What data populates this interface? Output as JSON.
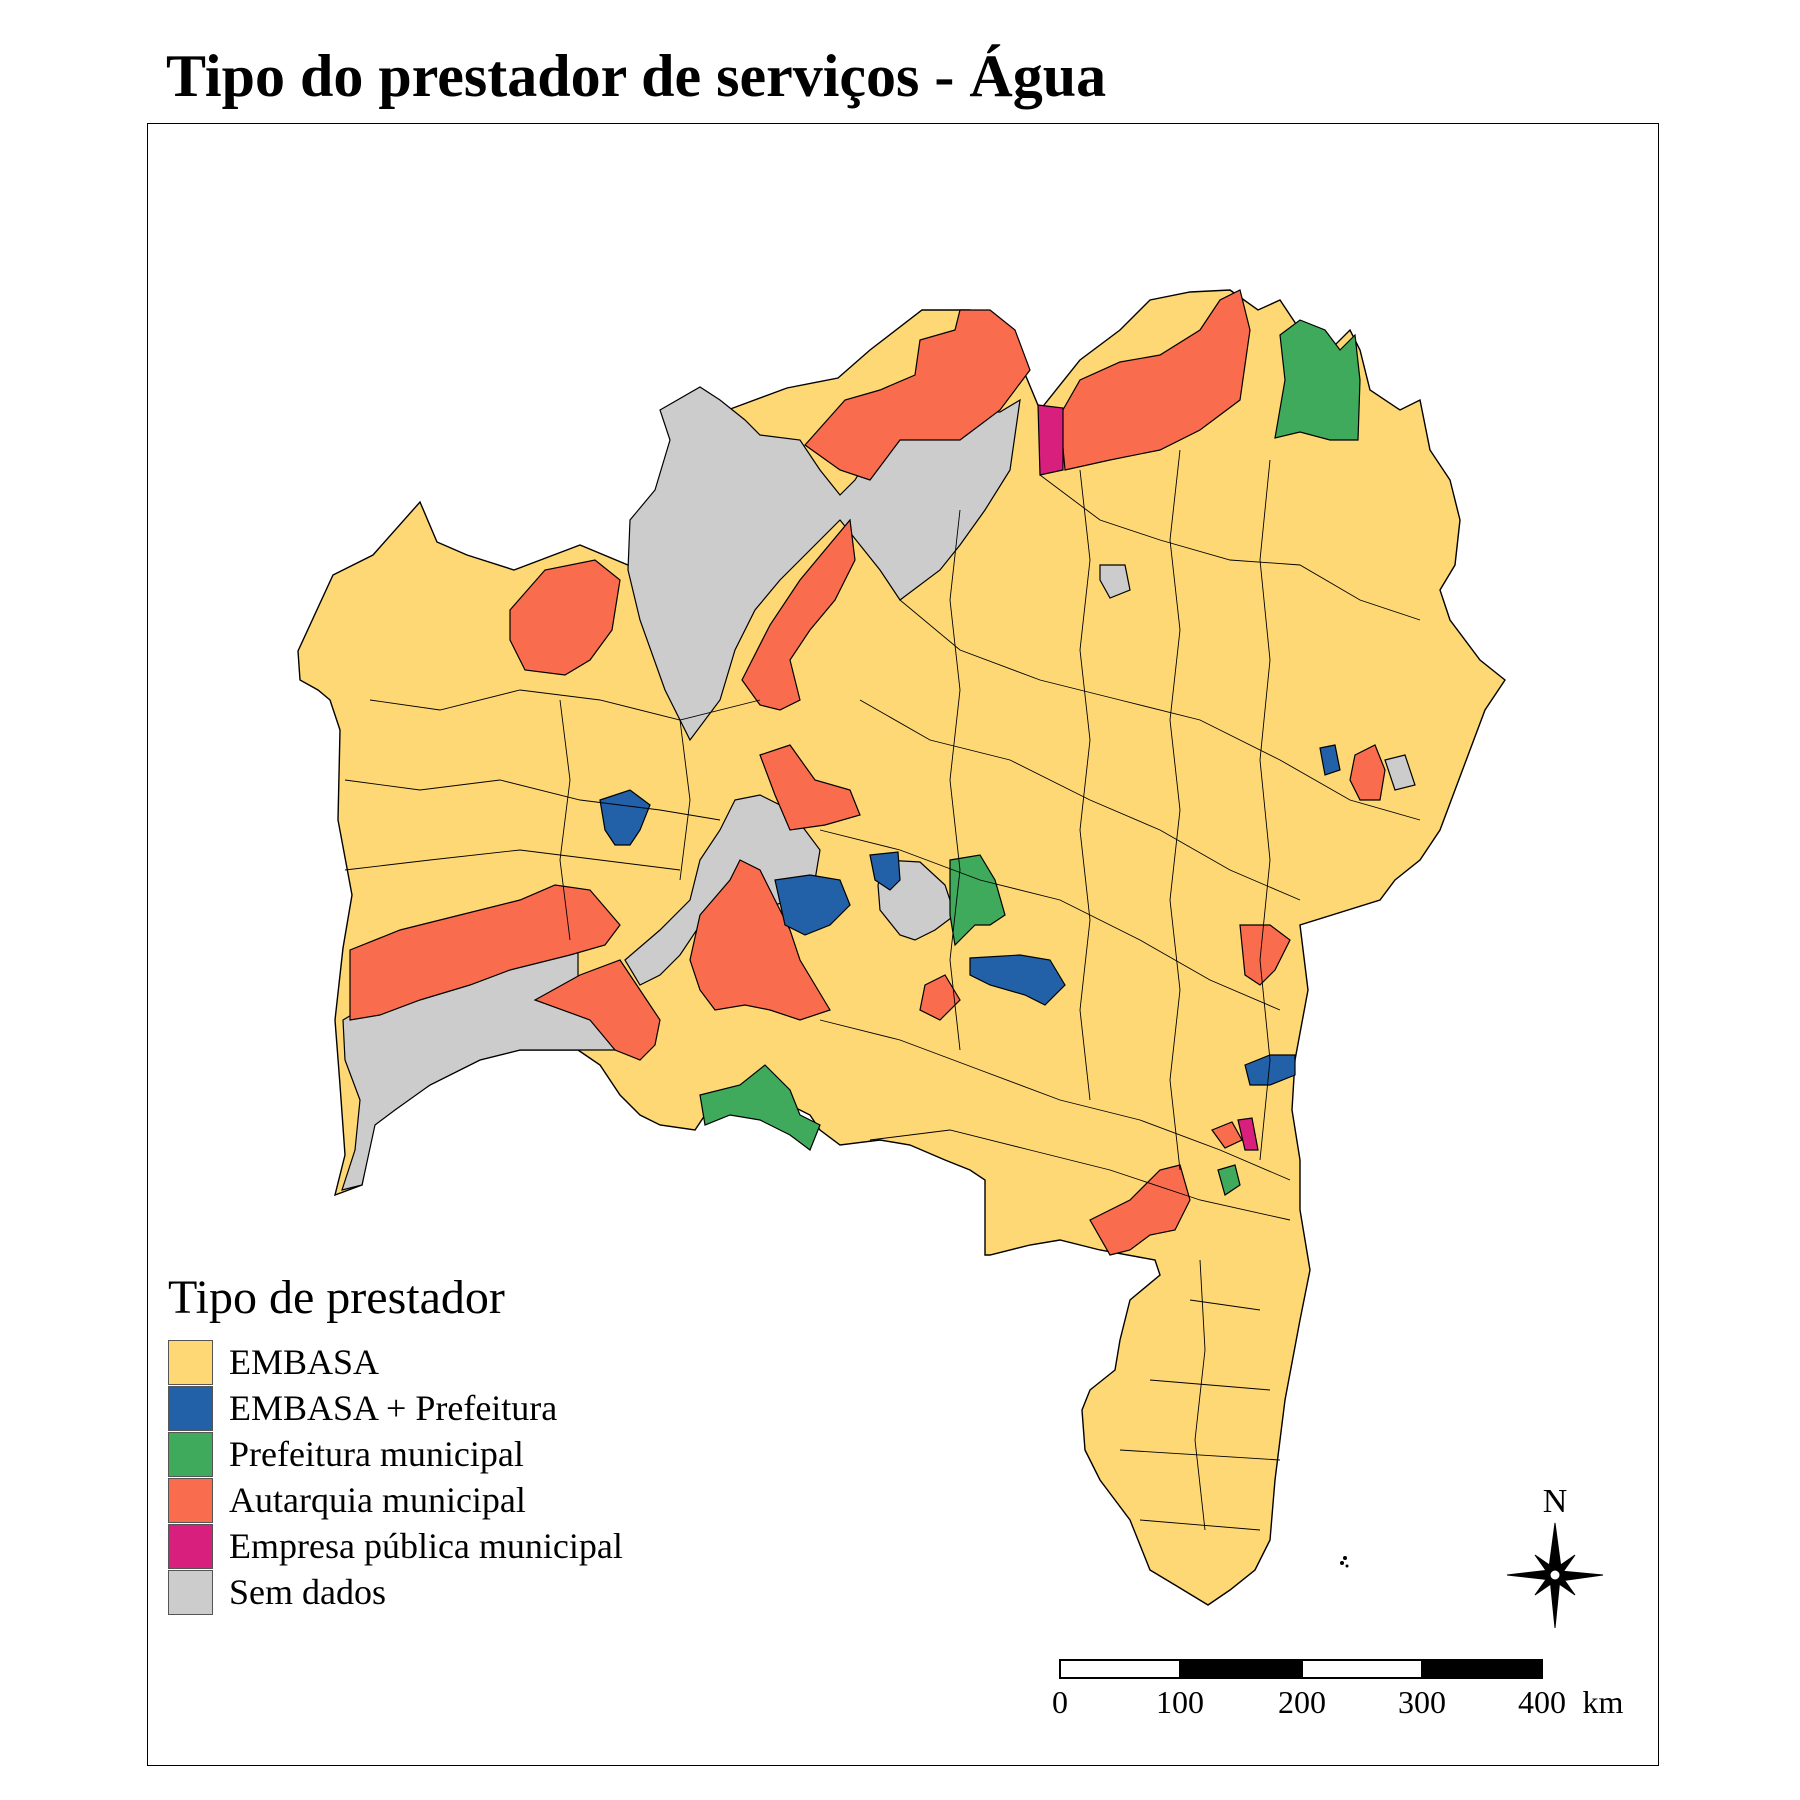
{
  "title": "Tipo do prestador de serviços - Água",
  "legend": {
    "title": "Tipo de prestador",
    "items": [
      {
        "label": "EMBASA",
        "color": "#FDD875"
      },
      {
        "label": "EMBASA + Prefeitura",
        "color": "#2260A8"
      },
      {
        "label": "Prefeitura municipal",
        "color": "#3FAA5C"
      },
      {
        "label": "Autarquia municipal",
        "color": "#F96C4E"
      },
      {
        "label": "Empresa pública municipal",
        "color": "#D81F7E"
      },
      {
        "label": "Sem dados",
        "color": "#CCCCCC"
      }
    ]
  },
  "north_arrow": {
    "label": "N"
  },
  "scale_bar": {
    "labels": [
      "0",
      "100",
      "200",
      "300",
      "400"
    ],
    "unit": "km"
  }
}
